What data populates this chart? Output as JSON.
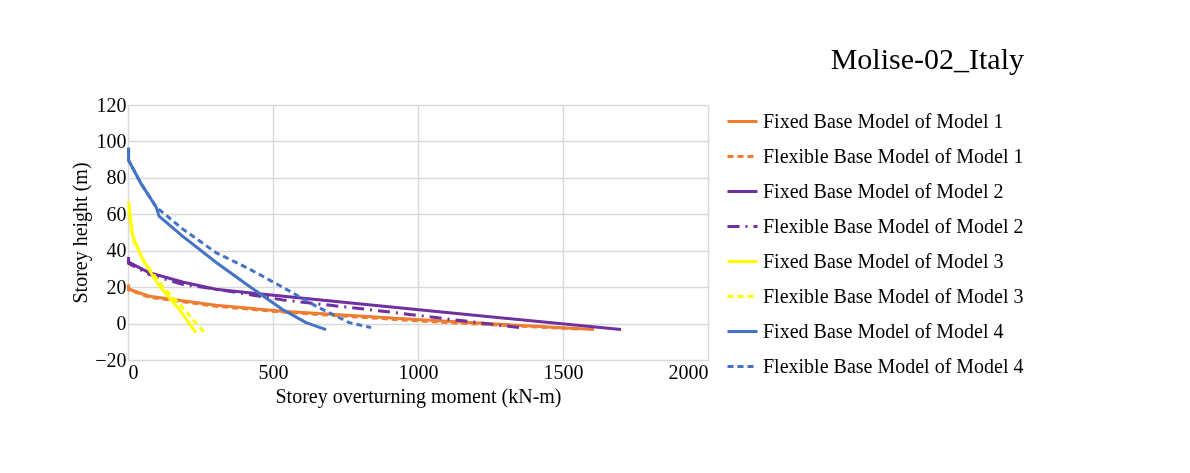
{
  "chart_data": {
    "type": "line",
    "title": "Molise-02_Italy",
    "xlabel": "Storey overturning moment (kN-m)",
    "ylabel": "Storey height (m)",
    "xlim": [
      0,
      2000
    ],
    "xticks": [
      0,
      500,
      1000,
      1500,
      2000
    ],
    "ylim": [
      -20,
      120
    ],
    "yticks": [
      -20,
      0,
      20,
      40,
      60,
      80,
      100,
      120
    ],
    "grid": true,
    "legend": "right",
    "marker": "none",
    "series": [
      {
        "name": "Fixed Base Model of Model 1",
        "color": "#ed7d31",
        "line_style": "solid",
        "x": [
          2,
          2,
          73,
          303,
          533,
          993,
          1607
        ],
        "values": [
          21.5,
          19,
          15,
          10,
          6.8,
          2.2,
          -3.3
        ]
      },
      {
        "name": "Flexible Base Model of Model 1",
        "color": "#ed7d31",
        "line_style": "dashed",
        "x": [
          2,
          2,
          73,
          303,
          533,
          993,
          1550
        ],
        "values": [
          21,
          18.5,
          14.5,
          9.5,
          6.3,
          1.5,
          -3
        ]
      },
      {
        "name": "Fixed Base Model of Model 2",
        "color": "#7030a0",
        "line_style": "solid",
        "x": [
          2,
          2,
          73,
          188,
          303,
          476,
          890,
          1700
        ],
        "values": [
          36.5,
          33.7,
          28,
          22.8,
          18.8,
          16,
          9.4,
          -3.3
        ]
      },
      {
        "name": "Flexible Base Model of Model 2",
        "color": "#7030a0",
        "line_style": "dashdot",
        "x": [
          2,
          2,
          73,
          188,
          338,
          533,
          878,
          1360
        ],
        "values": [
          35.5,
          33,
          27,
          21.5,
          18,
          13,
          6.8,
          -2.4
        ]
      },
      {
        "name": "Fixed Base Model of Model 3",
        "color": "#ffff00",
        "line_style": "solid",
        "x": [
          2,
          16,
          51,
          108,
          177,
          234
        ],
        "values": [
          67,
          48,
          35,
          20.6,
          7.7,
          -5
        ]
      },
      {
        "name": "Flexible Base Model of Model 3",
        "color": "#ffff00",
        "line_style": "dashed",
        "x": [
          2,
          18,
          56,
          118,
          195,
          263
        ],
        "values": [
          62,
          46,
          34,
          20.6,
          7.7,
          -5
        ]
      },
      {
        "name": "Fixed Base Model of Model 4",
        "color": "#4472c4",
        "line_style": "solid",
        "x": [
          2,
          2,
          45,
          97,
          107,
          188,
          303,
          418,
          533,
          614,
          683
        ],
        "values": [
          96.5,
          89.7,
          76.8,
          64,
          59,
          48,
          33.7,
          20.5,
          7.7,
          0.5,
          -3.3
        ]
      },
      {
        "name": "Flexible Base Model of Model 4",
        "color": "#4472c4",
        "line_style": "dashed",
        "x": [
          2,
          2,
          45,
          97,
          188,
          303,
          418,
          533,
          648,
          763,
          838
        ],
        "values": [
          96.5,
          89.7,
          76.8,
          64,
          52,
          39,
          30,
          20,
          9.6,
          0.5,
          -2.2
        ]
      }
    ]
  }
}
